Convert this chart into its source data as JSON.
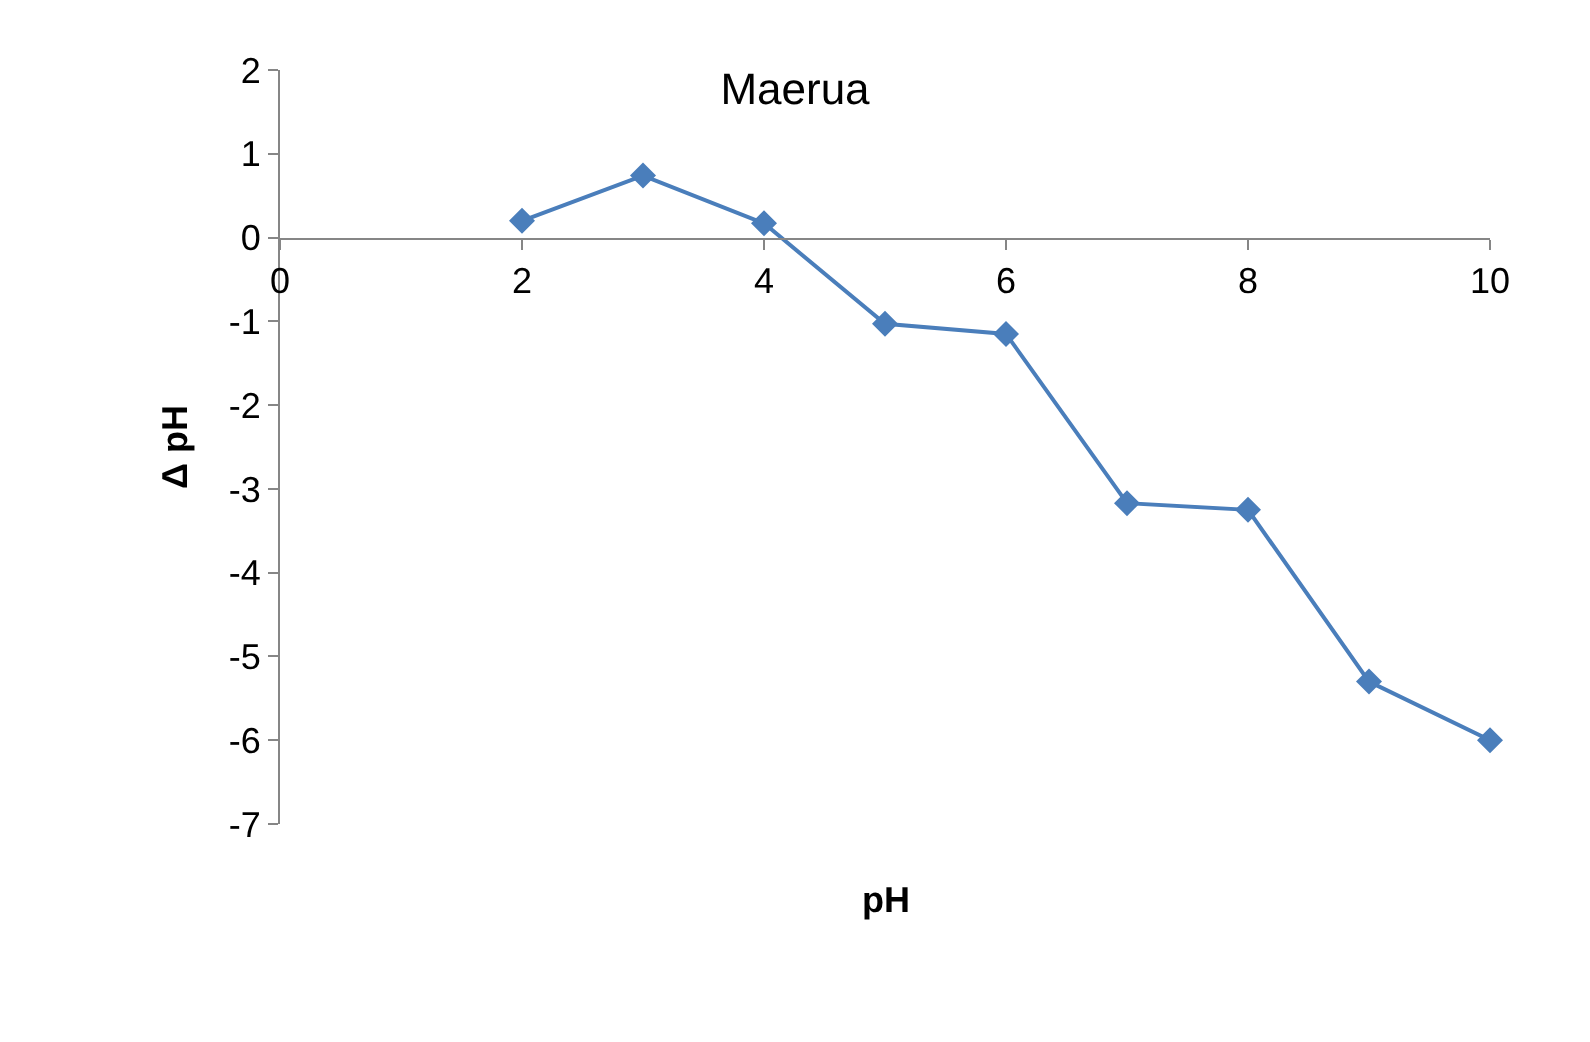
{
  "chart_data": {
    "type": "line",
    "title": "Maerua",
    "xlabel": "pH",
    "ylabel": "Δ pH",
    "x": [
      2,
      3,
      4,
      5,
      6,
      7,
      8,
      9,
      10
    ],
    "series": [
      {
        "color": "#4a7ebb",
        "values": [
          0.2,
          0.74,
          0.17,
          -1.03,
          -1.15,
          -3.17,
          -3.25,
          -5.3,
          -6.0
        ]
      }
    ],
    "xlim": [
      0,
      10
    ],
    "xticks": [
      0,
      2,
      4,
      6,
      8,
      10
    ],
    "ylim": [
      -7,
      2
    ],
    "yticks": [
      -7,
      -6,
      -5,
      -4,
      -3,
      -2,
      -1,
      0,
      1,
      2
    ],
    "marker": "diamond",
    "line_style": "solid"
  }
}
